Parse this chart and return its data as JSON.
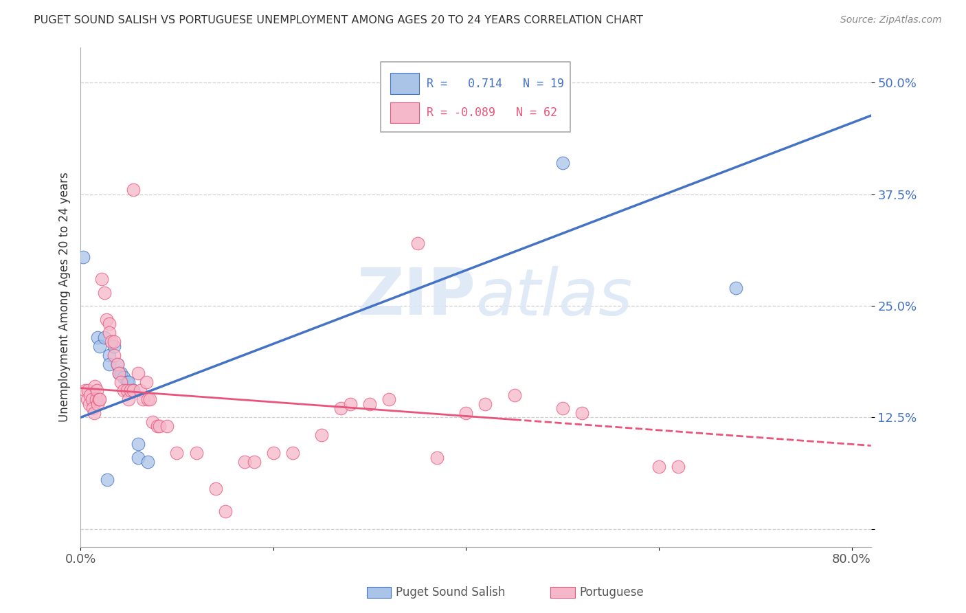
{
  "title": "PUGET SOUND SALISH VS PORTUGUESE UNEMPLOYMENT AMONG AGES 20 TO 24 YEARS CORRELATION CHART",
  "source": "Source: ZipAtlas.com",
  "ylabel": "Unemployment Among Ages 20 to 24 years",
  "xlim": [
    0.0,
    0.82
  ],
  "ylim": [
    -0.02,
    0.54
  ],
  "yticks": [
    0.0,
    0.125,
    0.25,
    0.375,
    0.5
  ],
  "ytick_labels": [
    "",
    "12.5%",
    "25.0%",
    "37.5%",
    "50.0%"
  ],
  "watermark": "ZIPatlas",
  "blue_color": "#aac4e8",
  "pink_color": "#f5b8ca",
  "blue_line_color": "#4472c4",
  "pink_line_color": "#e8547a",
  "grid_color": "#d0d0d0",
  "blue_scatter": [
    [
      0.003,
      0.305
    ],
    [
      0.018,
      0.215
    ],
    [
      0.02,
      0.205
    ],
    [
      0.025,
      0.215
    ],
    [
      0.03,
      0.195
    ],
    [
      0.03,
      0.185
    ],
    [
      0.035,
      0.205
    ],
    [
      0.038,
      0.185
    ],
    [
      0.04,
      0.175
    ],
    [
      0.042,
      0.175
    ],
    [
      0.045,
      0.17
    ],
    [
      0.048,
      0.165
    ],
    [
      0.05,
      0.165
    ],
    [
      0.055,
      0.155
    ],
    [
      0.06,
      0.095
    ],
    [
      0.06,
      0.08
    ],
    [
      0.07,
      0.075
    ],
    [
      0.028,
      0.055
    ],
    [
      0.5,
      0.41
    ],
    [
      0.68,
      0.27
    ]
  ],
  "pink_scatter": [
    [
      0.005,
      0.155
    ],
    [
      0.007,
      0.145
    ],
    [
      0.008,
      0.155
    ],
    [
      0.009,
      0.14
    ],
    [
      0.01,
      0.15
    ],
    [
      0.012,
      0.145
    ],
    [
      0.013,
      0.135
    ],
    [
      0.014,
      0.13
    ],
    [
      0.015,
      0.16
    ],
    [
      0.016,
      0.145
    ],
    [
      0.017,
      0.155
    ],
    [
      0.018,
      0.14
    ],
    [
      0.019,
      0.145
    ],
    [
      0.02,
      0.145
    ],
    [
      0.022,
      0.28
    ],
    [
      0.025,
      0.265
    ],
    [
      0.027,
      0.235
    ],
    [
      0.03,
      0.23
    ],
    [
      0.03,
      0.22
    ],
    [
      0.032,
      0.21
    ],
    [
      0.035,
      0.21
    ],
    [
      0.035,
      0.195
    ],
    [
      0.038,
      0.185
    ],
    [
      0.04,
      0.175
    ],
    [
      0.042,
      0.165
    ],
    [
      0.045,
      0.155
    ],
    [
      0.048,
      0.155
    ],
    [
      0.05,
      0.145
    ],
    [
      0.052,
      0.155
    ],
    [
      0.055,
      0.155
    ],
    [
      0.06,
      0.175
    ],
    [
      0.062,
      0.155
    ],
    [
      0.065,
      0.145
    ],
    [
      0.068,
      0.165
    ],
    [
      0.07,
      0.145
    ],
    [
      0.072,
      0.145
    ],
    [
      0.075,
      0.12
    ],
    [
      0.08,
      0.115
    ],
    [
      0.082,
      0.115
    ],
    [
      0.09,
      0.115
    ],
    [
      0.1,
      0.085
    ],
    [
      0.12,
      0.085
    ],
    [
      0.14,
      0.045
    ],
    [
      0.15,
      0.02
    ],
    [
      0.17,
      0.075
    ],
    [
      0.18,
      0.075
    ],
    [
      0.2,
      0.085
    ],
    [
      0.22,
      0.085
    ],
    [
      0.25,
      0.105
    ],
    [
      0.27,
      0.135
    ],
    [
      0.28,
      0.14
    ],
    [
      0.3,
      0.14
    ],
    [
      0.32,
      0.145
    ],
    [
      0.37,
      0.08
    ],
    [
      0.4,
      0.13
    ],
    [
      0.42,
      0.14
    ],
    [
      0.45,
      0.15
    ],
    [
      0.5,
      0.135
    ],
    [
      0.52,
      0.13
    ],
    [
      0.6,
      0.07
    ],
    [
      0.62,
      0.07
    ],
    [
      0.35,
      0.32
    ],
    [
      0.055,
      0.38
    ]
  ]
}
